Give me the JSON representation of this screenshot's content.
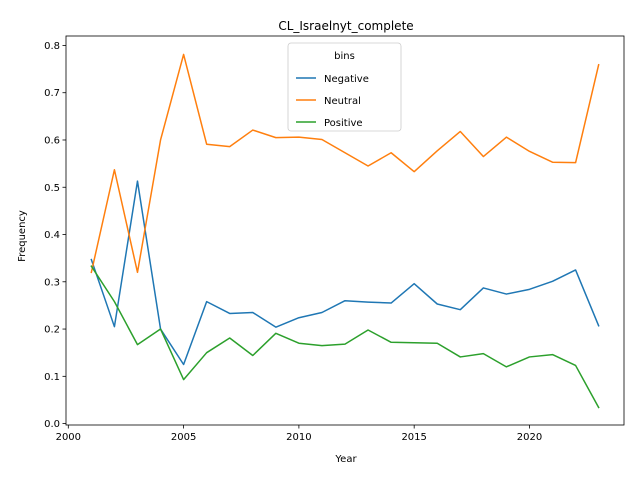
{
  "chart_data": {
    "type": "line",
    "title": "CL_Israelnyt_complete",
    "xlabel": "Year",
    "ylabel": "Frequency",
    "xlim": [
      1999.9,
      2024.1
    ],
    "ylim": [
      -0.003,
      0.82
    ],
    "xticks": [
      2000,
      2005,
      2010,
      2015,
      2020
    ],
    "yticks": [
      0.0,
      0.1,
      0.2,
      0.3,
      0.4,
      0.5,
      0.6,
      0.7,
      0.8
    ],
    "ytick_labels": [
      "0.0",
      "0.1",
      "0.2",
      "0.3",
      "0.4",
      "0.5",
      "0.6",
      "0.7",
      "0.8"
    ],
    "grid": false,
    "legend": {
      "title": "bins",
      "placement": "upper center"
    },
    "x": [
      2001,
      2002,
      2003,
      2004,
      2005,
      2006,
      2007,
      2008,
      2009,
      2010,
      2011,
      2012,
      2013,
      2014,
      2015,
      2016,
      2017,
      2018,
      2019,
      2020,
      2021,
      2022,
      2023
    ],
    "series": [
      {
        "name": "Negative",
        "color": "#1f77b4",
        "values": [
          0.347,
          0.205,
          0.513,
          0.2,
          0.125,
          0.258,
          0.233,
          0.235,
          0.204,
          0.224,
          0.235,
          0.26,
          0.257,
          0.255,
          0.296,
          0.253,
          0.241,
          0.287,
          0.274,
          0.284,
          0.301,
          0.325,
          0.207
        ]
      },
      {
        "name": "Neutral",
        "color": "#ff7f0e",
        "values": [
          0.32,
          0.537,
          0.32,
          0.6,
          0.781,
          0.591,
          0.586,
          0.621,
          0.605,
          0.606,
          0.601,
          0.573,
          0.545,
          0.573,
          0.533,
          0.577,
          0.618,
          0.565,
          0.606,
          0.576,
          0.553,
          0.552,
          0.759
        ]
      },
      {
        "name": "Positive",
        "color": "#2ca02c",
        "values": [
          0.333,
          0.258,
          0.167,
          0.2,
          0.093,
          0.15,
          0.181,
          0.144,
          0.191,
          0.17,
          0.165,
          0.168,
          0.198,
          0.172,
          0.171,
          0.17,
          0.141,
          0.148,
          0.12,
          0.141,
          0.146,
          0.123,
          0.034
        ]
      }
    ]
  }
}
